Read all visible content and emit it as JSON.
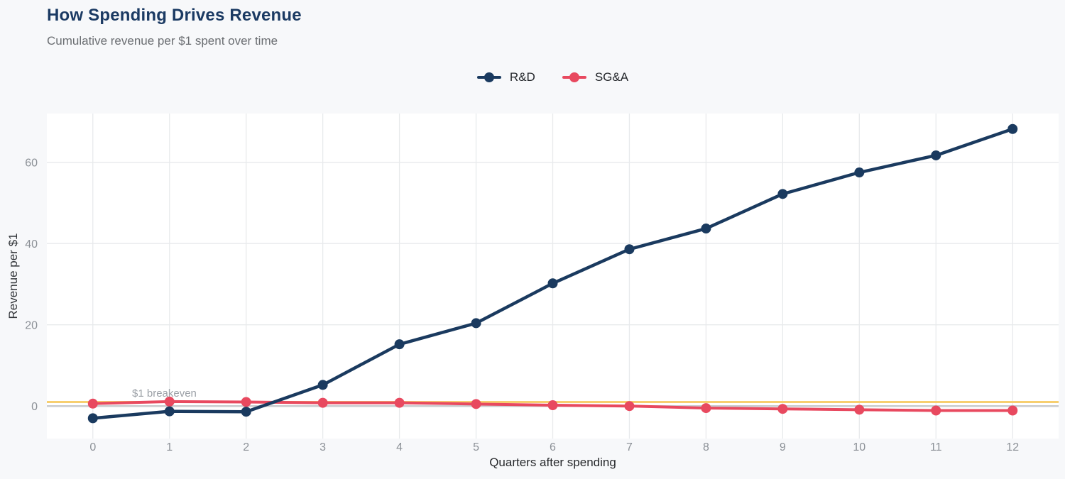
{
  "header": {
    "title": "How Spending Drives Revenue",
    "subtitle": "Cumulative revenue per $1 spent over time"
  },
  "chart_data": {
    "type": "line",
    "title": "How Spending Drives Revenue",
    "subtitle": "Cumulative revenue per $1 spent over time",
    "xlabel": "Quarters after spending",
    "ylabel": "Revenue per $1",
    "x": [
      0,
      1,
      2,
      3,
      4,
      5,
      6,
      7,
      8,
      9,
      10,
      11,
      12
    ],
    "xticks": [
      0,
      1,
      2,
      3,
      4,
      5,
      6,
      7,
      8,
      9,
      10,
      11,
      12
    ],
    "yticks": [
      0,
      20,
      40,
      60
    ],
    "xlim": [
      -0.6,
      12.6
    ],
    "ylim": [
      -8,
      72
    ],
    "grid": true,
    "legend_position": "top-center",
    "series": [
      {
        "name": "R&D",
        "color": "#1a3a5f",
        "line_width": 4.5,
        "values": [
          -3.0,
          -1.3,
          -1.4,
          5.2,
          15.2,
          20.4,
          30.2,
          38.6,
          43.7,
          52.2,
          57.5,
          61.7,
          68.2
        ]
      },
      {
        "name": "SG&A",
        "color": "#e8495f",
        "line_width": 4,
        "values": [
          0.6,
          1.1,
          1.0,
          0.8,
          0.8,
          0.5,
          0.2,
          0.0,
          -0.5,
          -0.7,
          -0.9,
          -1.1,
          -1.1
        ]
      }
    ],
    "reference_lines": [
      {
        "label": "$1 breakeven",
        "value": 1,
        "color": "#f7cf70",
        "width": 3
      },
      {
        "label": "",
        "value": 0,
        "color": "#c9cbce",
        "width": 2.5
      }
    ],
    "colors": {
      "background": "#f7f8fa",
      "plot_background": "#ffffff",
      "gridline": "#e8eaec",
      "tick_label": "#8b9096",
      "title": "#1b3a63",
      "subtitle": "#6b6e72",
      "annotation": "#9ca1a7"
    }
  }
}
